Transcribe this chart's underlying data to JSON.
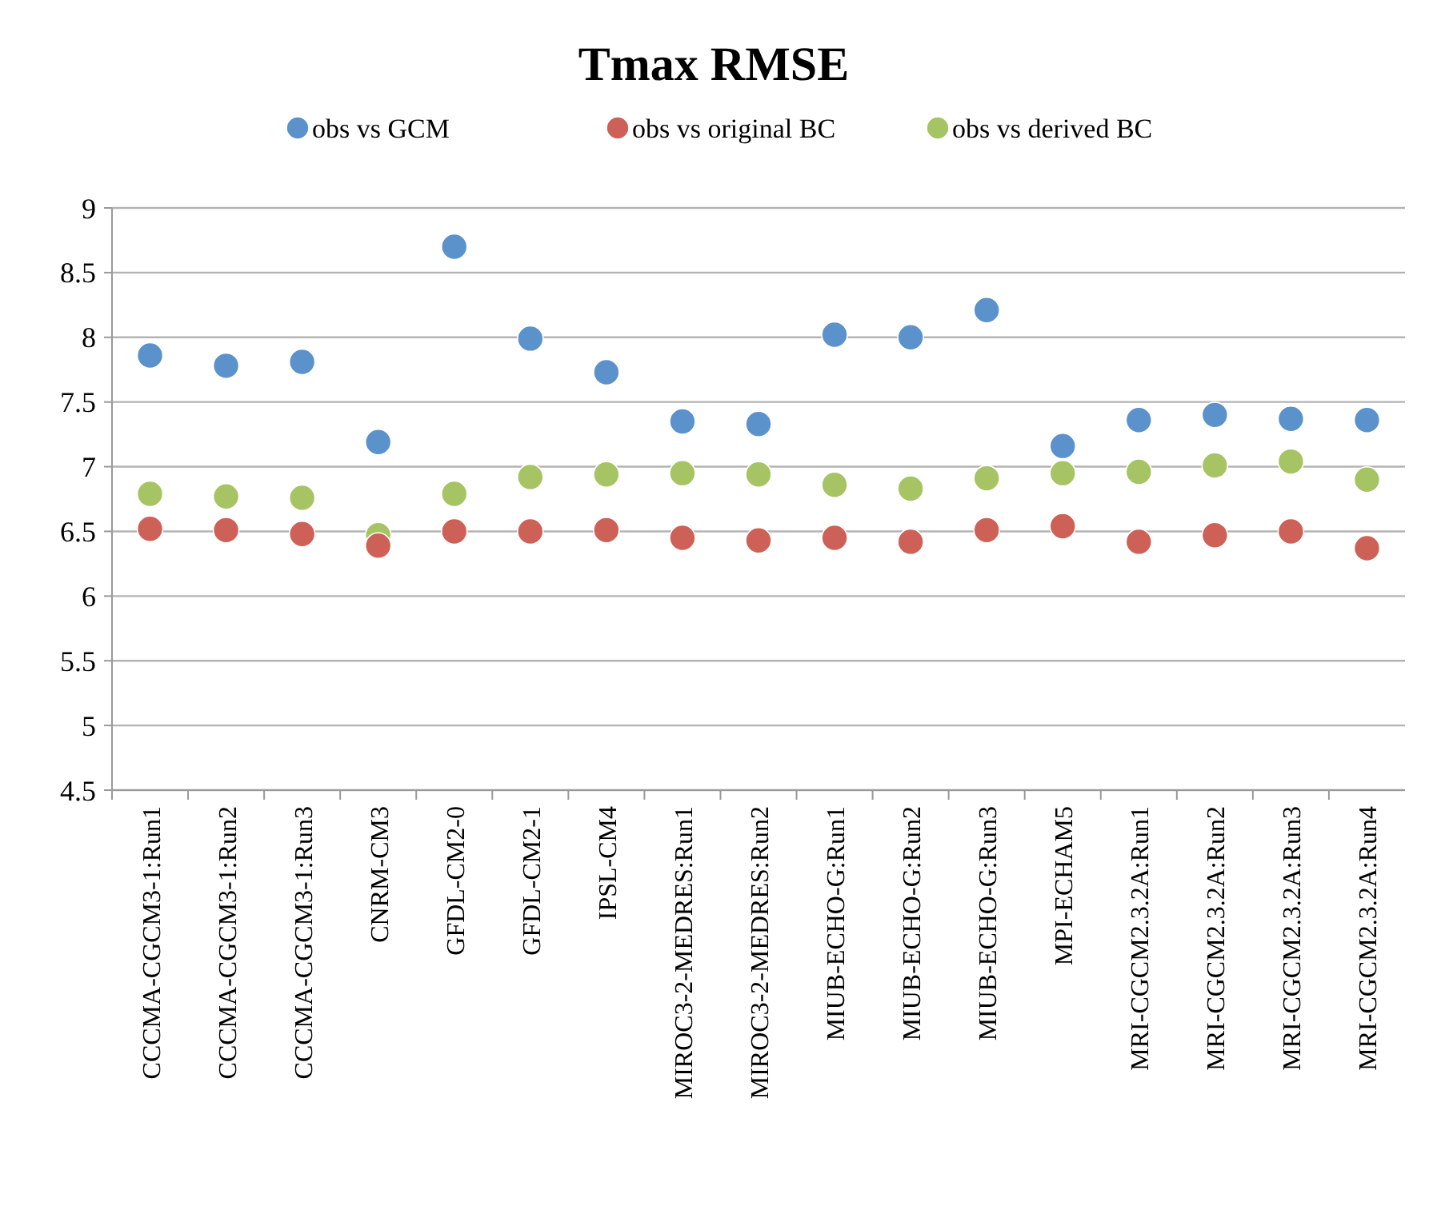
{
  "chart_data": {
    "type": "scatter",
    "title": "Tmax RMSE",
    "categories": [
      "CCCMA-CGCM3-1:Run1",
      "CCCMA-CGCM3-1:Run2",
      "CCCMA-CGCM3-1:Run3",
      "CNRM-CM3",
      "GFDL-CM2-0",
      "GFDL-CM2-1",
      "IPSL-CM4",
      "MIROC3-2-MEDRES:Run1",
      "MIROC3-2-MEDRES:Run2",
      "MIUB-ECHO-G:Run1",
      "MIUB-ECHO-G:Run2",
      "MIUB-ECHO-G:Run3",
      "MPI-ECHAM5",
      "MRI-CGCM2.3.2A:Run1",
      "MRI-CGCM2.3.2A:Run2",
      "MRI-CGCM2.3.2A:Run3",
      "MRI-CGCM2.3.2A:Run4"
    ],
    "series": [
      {
        "name": "obs vs GCM",
        "color": "#5b92cb",
        "values": [
          7.86,
          7.78,
          7.81,
          7.19,
          8.7,
          7.99,
          7.73,
          7.35,
          7.33,
          8.02,
          8.0,
          8.21,
          7.16,
          7.36,
          7.4,
          7.37,
          7.36
        ]
      },
      {
        "name": "obs vs original BC",
        "color": "#cd6157",
        "values": [
          6.52,
          6.51,
          6.48,
          6.39,
          6.5,
          6.5,
          6.51,
          6.45,
          6.43,
          6.45,
          6.42,
          6.51,
          6.54,
          6.42,
          6.47,
          6.5,
          6.37
        ]
      },
      {
        "name": "obs vs derived BC",
        "color": "#a6c464",
        "values": [
          6.79,
          6.77,
          6.76,
          6.47,
          6.79,
          6.92,
          6.94,
          6.95,
          6.94,
          6.86,
          6.83,
          6.91,
          6.95,
          6.96,
          7.01,
          7.04,
          6.9
        ]
      }
    ],
    "ylim": [
      4.5,
      9
    ],
    "yticks": [
      4.5,
      5,
      5.5,
      6,
      6.5,
      7,
      7.5,
      8,
      8.5,
      9
    ],
    "grid": "y",
    "legend": "top",
    "marker": "circle"
  }
}
